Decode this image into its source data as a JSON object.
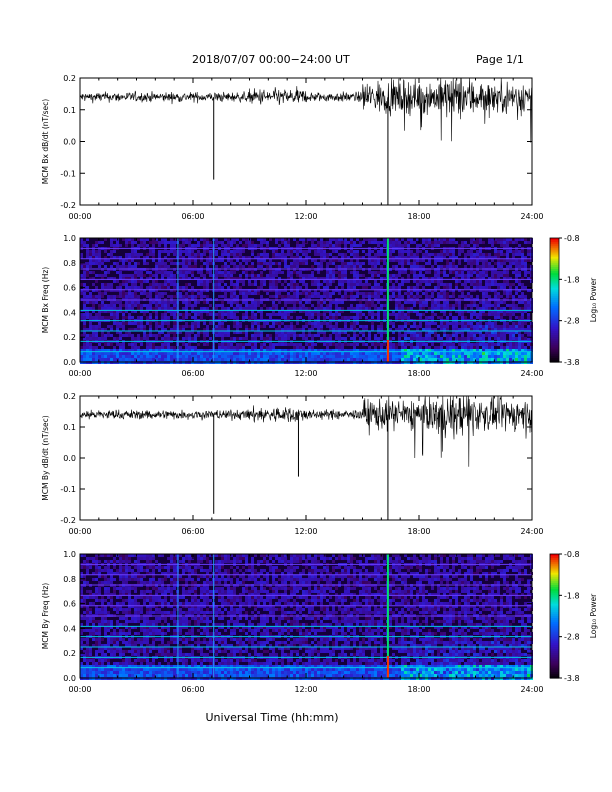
{
  "header": {
    "title": "2018/07/07   00:00−24:00 UT",
    "page": "Page 1/1"
  },
  "x_axis": {
    "label": "Universal Time (hh:mm)",
    "ticks": [
      "00:00",
      "06:00",
      "12:00",
      "18:00",
      "24:00"
    ]
  },
  "colorbar": {
    "title": "Log₁₀ Power",
    "ticks": [
      "-0.8",
      "-1.8",
      "-2.8",
      "-3.8"
    ]
  },
  "chart_data": [
    {
      "type": "line",
      "panel": "bx-derivative",
      "ylabel": "MCM Bx dB/dt (nT/sec)",
      "x_range_hours": [
        0,
        24
      ],
      "ylim": [
        -0.2,
        0.2
      ],
      "yticks": [
        "0.2",
        "0.1",
        "0.0",
        "-0.1",
        "-0.2"
      ],
      "xticks": [
        "00:00",
        "06:00",
        "12:00",
        "18:00",
        "24:00"
      ],
      "baseline": 0.14,
      "spikes": [
        {
          "x": 7.1,
          "y": -0.12
        },
        {
          "x": 16.35,
          "y": -0.2
        }
      ]
    },
    {
      "type": "heatmap",
      "panel": "bx-spectrogram",
      "ylabel": "MCM Bx Freq (Hz)",
      "x_range_hours": [
        0,
        24
      ],
      "ylim": [
        0.0,
        1.0
      ],
      "yticks": [
        "1.0",
        "0.8",
        "0.6",
        "0.4",
        "0.2",
        "0.0"
      ],
      "xticks": [
        "00:00",
        "06:00",
        "12:00",
        "18:00",
        "24:00"
      ],
      "color_range": [
        -3.8,
        -0.8
      ],
      "vertical_lines_hours": [
        5.2,
        7.1,
        16.35
      ]
    },
    {
      "type": "line",
      "panel": "by-derivative",
      "ylabel": "MCM By dB/dt (nT/sec)",
      "x_range_hours": [
        0,
        24
      ],
      "ylim": [
        -0.2,
        0.2
      ],
      "yticks": [
        "0.2",
        "0.1",
        "0.0",
        "-0.1",
        "-0.2"
      ],
      "xticks": [
        "00:00",
        "06:00",
        "12:00",
        "18:00",
        "24:00"
      ],
      "baseline": 0.14,
      "spikes": [
        {
          "x": 7.1,
          "y": -0.18
        },
        {
          "x": 11.6,
          "y": -0.06
        },
        {
          "x": 16.35,
          "y": -0.2
        }
      ]
    },
    {
      "type": "heatmap",
      "panel": "by-spectrogram",
      "ylabel": "MCM By Freq (Hz)",
      "x_range_hours": [
        0,
        24
      ],
      "ylim": [
        0.0,
        1.0
      ],
      "yticks": [
        "1.0",
        "0.8",
        "0.6",
        "0.4",
        "0.2",
        "0.0"
      ],
      "xticks": [
        "00:00",
        "06:00",
        "12:00",
        "18:00",
        "24:00"
      ],
      "color_range": [
        -3.8,
        -0.8
      ],
      "vertical_lines_hours": [
        5.2,
        7.1,
        16.35
      ]
    }
  ]
}
